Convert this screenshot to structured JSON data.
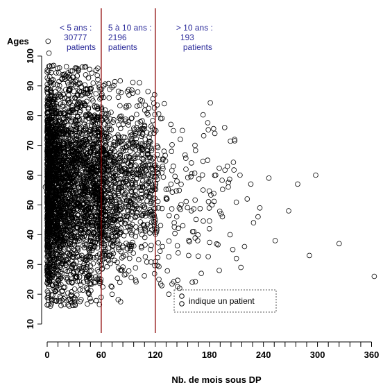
{
  "chart_data": {
    "type": "scatter",
    "title": "",
    "xlabel": "Nb. de mois sous DP",
    "ylabel": "Ages",
    "xlim": [
      0,
      365
    ],
    "ylim": [
      7,
      103
    ],
    "x_ticks": [
      0,
      60,
      120,
      180,
      240,
      300,
      360
    ],
    "x_minor_step": 12,
    "y_ticks": [
      10,
      20,
      30,
      40,
      50,
      60,
      70,
      80,
      90,
      100
    ],
    "grid": false,
    "thresholds": [
      {
        "x": 60,
        "color": "#8b0000"
      },
      {
        "x": 120,
        "color": "#8b0000"
      }
    ],
    "groups": [
      {
        "line1": "< 5 ans :",
        "line2": "30777",
        "line3": "patients",
        "x_from": 0,
        "x_to": 60
      },
      {
        "line1": "5 à 10 ans :",
        "line2": "2196",
        "line3": "patients",
        "x_from": 60,
        "x_to": 120
      },
      {
        "line1": "> 10 ans :",
        "line2": "193",
        "line3": "patients",
        "x_from": 120,
        "x_to": 365
      }
    ],
    "legend": {
      "marker": "open-circle",
      "text": "indique un patient",
      "placement": "bottom-right"
    },
    "marker": "open-circle",
    "outliers": [
      {
        "x": 363,
        "y": 26
      },
      {
        "x": 324,
        "y": 37
      },
      {
        "x": 298,
        "y": 60
      },
      {
        "x": 291,
        "y": 33
      },
      {
        "x": 246,
        "y": 59
      },
      {
        "x": 236,
        "y": 49
      },
      {
        "x": 234,
        "y": 46
      },
      {
        "x": 229,
        "y": 44
      },
      {
        "x": 226,
        "y": 57
      },
      {
        "x": 222,
        "y": 52
      },
      {
        "x": 219,
        "y": 36
      },
      {
        "x": 215,
        "y": 29
      },
      {
        "x": 214,
        "y": 60
      },
      {
        "x": 210,
        "y": 32
      },
      {
        "x": 208,
        "y": 72
      },
      {
        "x": 206,
        "y": 35
      },
      {
        "x": 203,
        "y": 40
      },
      {
        "x": 200,
        "y": 63
      },
      {
        "x": 197,
        "y": 76
      },
      {
        "x": 193,
        "y": 47
      },
      {
        "x": 191,
        "y": 28
      },
      {
        "x": 187,
        "y": 60
      },
      {
        "x": 183,
        "y": 50
      },
      {
        "x": 180,
        "y": 42
      },
      {
        "x": 178,
        "y": 65
      },
      {
        "x": 173,
        "y": 55
      },
      {
        "x": 171,
        "y": 27
      },
      {
        "x": 167,
        "y": 38
      },
      {
        "x": 164,
        "y": 70
      },
      {
        "x": 160,
        "y": 48
      },
      {
        "x": 157,
        "y": 33
      },
      {
        "x": 154,
        "y": 62
      },
      {
        "x": 150,
        "y": 75
      },
      {
        "x": 147,
        "y": 22
      },
      {
        "x": 144,
        "y": 58
      },
      {
        "x": 141,
        "y": 44
      },
      {
        "x": 138,
        "y": 68
      },
      {
        "x": 135,
        "y": 20
      },
      {
        "x": 133,
        "y": 52
      },
      {
        "x": 130,
        "y": 84
      },
      {
        "x": 128,
        "y": 36
      },
      {
        "x": 126,
        "y": 79
      },
      {
        "x": 124,
        "y": 25
      },
      {
        "x": 122,
        "y": 61
      },
      {
        "x": 253,
        "y": 38
      },
      {
        "x": 268,
        "y": 48
      },
      {
        "x": 278,
        "y": 57
      },
      {
        "x": 201,
        "y": 56
      }
    ]
  }
}
